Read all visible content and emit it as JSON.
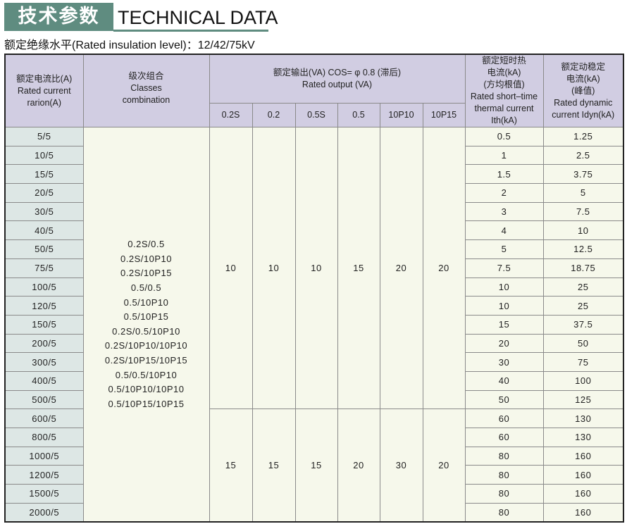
{
  "title": {
    "cn": "技术参数",
    "en": "TECHNICAL DATA"
  },
  "subtitle": "额定绝缘水平(Rated insulation level)：12/42/75kV",
  "headers": {
    "ratio": [
      "额定电流比(A)",
      "Rated current",
      "rarion(A)"
    ],
    "classes": [
      "级次组合",
      "Classes",
      "combination"
    ],
    "output": [
      "额定输出(VA) COS= φ 0.8 (滞后)",
      "Rated output (VA)"
    ],
    "output_cols": [
      "0.2S",
      "0.2",
      "0.5S",
      "0.5",
      "10P10",
      "10P15"
    ],
    "ith": [
      "额定短时热",
      "电流(kA)",
      "(方均根值)",
      "Rated short–time",
      "thermal current",
      "Ith(kA)"
    ],
    "idyn": [
      "额定动稳定",
      "电流(kA)",
      "(峰值)",
      "Rated dynamic",
      "current Idyn(kA)"
    ]
  },
  "classes": [
    "0.2S/0.5",
    "0.2S/10P10",
    "0.2S/10P15",
    "0.5/0.5",
    "0.5/10P10",
    "0.5/10P15",
    "0.2S/0.5/10P10",
    "0.2S/10P10/10P10",
    "0.2S/10P15/10P15",
    "0.5/0.5/10P10",
    "0.5/10P10/10P10",
    "0.5/10P15/10P15"
  ],
  "output_groups": [
    [
      "10",
      "10",
      "10",
      "15",
      "20",
      "20"
    ],
    [
      "15",
      "15",
      "15",
      "20",
      "30",
      "20"
    ]
  ],
  "rows": [
    [
      "5/5",
      "0.5",
      "1.25"
    ],
    [
      "10/5",
      "1",
      "2.5"
    ],
    [
      "15/5",
      "1.5",
      "3.75"
    ],
    [
      "20/5",
      "2",
      "5"
    ],
    [
      "30/5",
      "3",
      "7.5"
    ],
    [
      "40/5",
      "4",
      "10"
    ],
    [
      "50/5",
      "5",
      "12.5"
    ],
    [
      "75/5",
      "7.5",
      "18.75"
    ],
    [
      "100/5",
      "10",
      "25"
    ],
    [
      "120/5",
      "10",
      "25"
    ],
    [
      "150/5",
      "15",
      "37.5"
    ],
    [
      "200/5",
      "20",
      "50"
    ],
    [
      "300/5",
      "30",
      "75"
    ],
    [
      "400/5",
      "40",
      "100"
    ],
    [
      "500/5",
      "50",
      "125"
    ],
    [
      "600/5",
      "60",
      "130"
    ],
    [
      "800/5",
      "60",
      "130"
    ],
    [
      "1000/5",
      "80",
      "160"
    ],
    [
      "1200/5",
      "80",
      "160"
    ],
    [
      "1500/5",
      "80",
      "160"
    ],
    [
      "2000/5",
      "80",
      "160"
    ]
  ]
}
